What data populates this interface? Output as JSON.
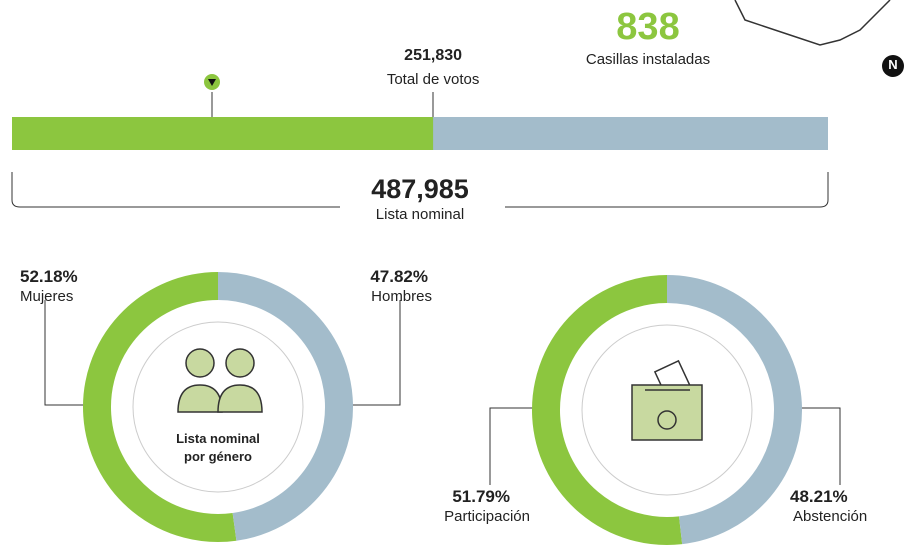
{
  "casillas": {
    "value": 838,
    "label": "Casillas instaladas"
  },
  "compass": "N",
  "chart_data": [
    {
      "type": "progress",
      "categories": [
        "Total de votos",
        "Lista nominal"
      ],
      "values": [
        251830,
        487985
      ],
      "value_labels": [
        "251,830",
        "487,985"
      ],
      "colors": [
        "#8cc63f",
        "#a3bccb"
      ]
    },
    {
      "type": "donut",
      "title": "Lista nominal por género",
      "categories": [
        "Mujeres",
        "Hombres"
      ],
      "values": [
        52.18,
        47.82
      ],
      "value_labels": [
        "52.18%",
        "47.82%"
      ],
      "colors": [
        "#8cc63f",
        "#a3bccb"
      ]
    },
    {
      "type": "donut",
      "categories": [
        "Participación",
        "Abstención"
      ],
      "values": [
        51.79,
        48.21
      ],
      "value_labels": [
        "51.79%",
        "48.21%"
      ],
      "colors": [
        "#8cc63f",
        "#a3bccb"
      ]
    }
  ]
}
